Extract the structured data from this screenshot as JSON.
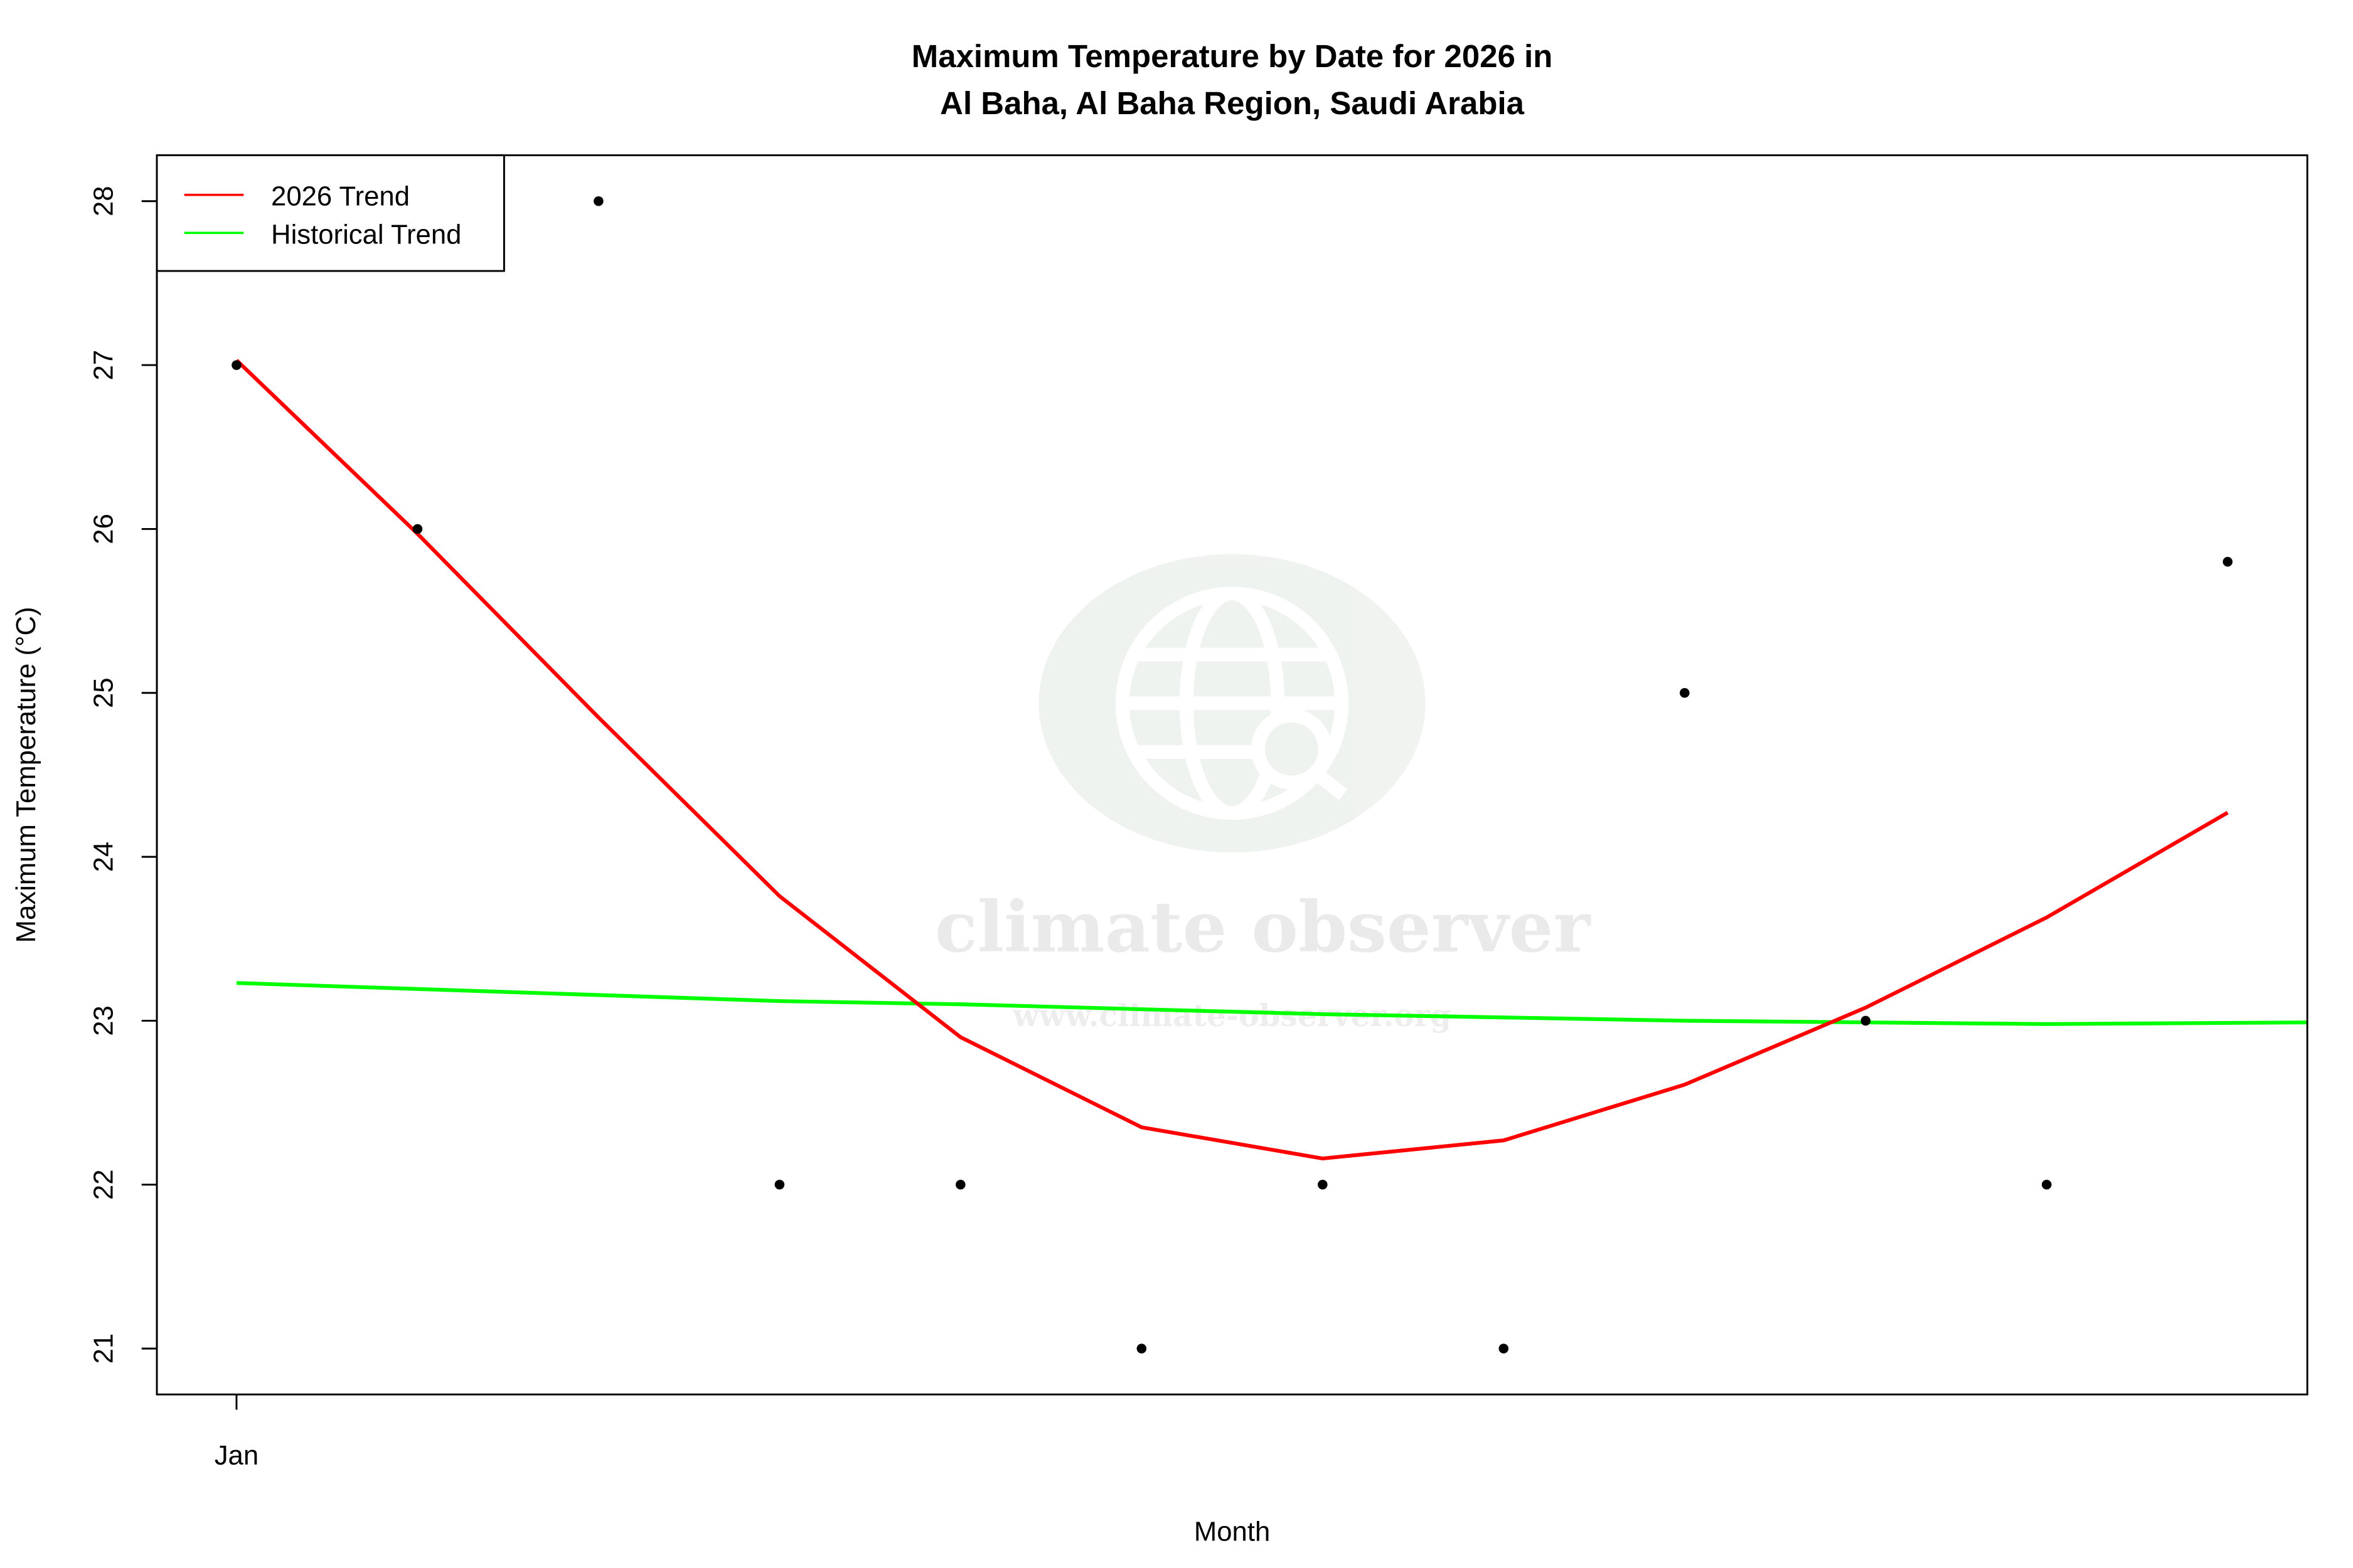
{
  "chart_data": {
    "type": "scatter",
    "title_line1": "Maximum Temperature by Date for 2026 in",
    "title_line2": "Al Baha, Al Baha Region, Saudi Arabia",
    "xlabel": "Month",
    "ylabel": "Maximum Temperature (°C)",
    "x_ticks": [
      {
        "x": 1,
        "label": "Jan"
      }
    ],
    "y_ticks": [
      21,
      22,
      23,
      24,
      25,
      26,
      27,
      28
    ],
    "xlim": [
      0.56,
      12.44
    ],
    "ylim": [
      20.72,
      28.28
    ],
    "grid": false,
    "legend_position": "top-left",
    "points": {
      "x": [
        1,
        2,
        3,
        4,
        5,
        6,
        7,
        8,
        9,
        10,
        11,
        12
      ],
      "y": [
        27,
        26,
        28,
        22,
        22,
        21,
        22,
        21,
        25,
        23,
        22,
        25.8
      ],
      "color": "#000000"
    },
    "series": [
      {
        "name": "2026 Trend",
        "color": "#ff0000",
        "x": [
          1,
          2,
          3,
          4,
          5,
          6,
          7,
          8,
          9,
          10,
          11,
          12
        ],
        "y": [
          27.03,
          25.97,
          24.85,
          23.76,
          22.9,
          22.35,
          22.16,
          22.27,
          22.61,
          23.08,
          23.63,
          24.27
        ]
      },
      {
        "name": "Historical Trend",
        "color": "#00ff00",
        "x": [
          1,
          4,
          5,
          7,
          9,
          10,
          11,
          12.44
        ],
        "y": [
          23.23,
          23.12,
          23.1,
          23.04,
          23.0,
          22.99,
          22.98,
          22.99
        ]
      }
    ],
    "watermark": {
      "name": "climate observer",
      "url": "www.climate-observer.org"
    }
  }
}
